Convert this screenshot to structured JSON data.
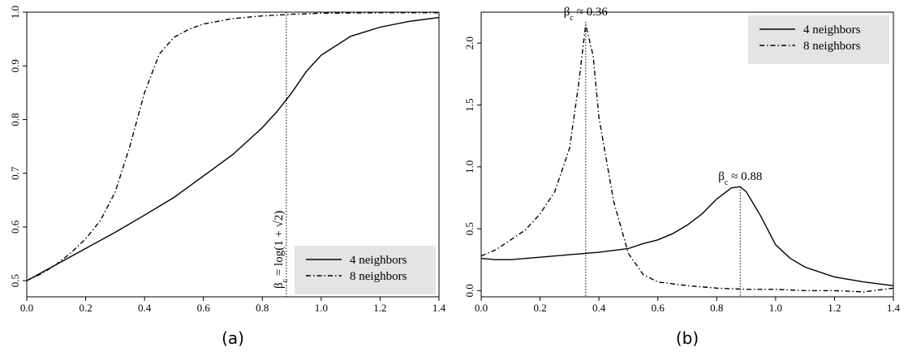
{
  "chart_data": [
    {
      "type": "line",
      "caption": "(a)",
      "xlim": [
        0,
        1.4
      ],
      "ylim": [
        0.47,
        1.0
      ],
      "xticks": [
        "0.0",
        "0.2",
        "0.4",
        "0.6",
        "0.8",
        "1.0",
        "1.2",
        "1.4"
      ],
      "yticks": [
        "0.5",
        "0.6",
        "0.7",
        "0.8",
        "0.9",
        "1.0"
      ],
      "legend": {
        "position": "bottom-right"
      },
      "annotation": {
        "text": "β",
        "sub": "c",
        "rest": " = log(1 + √2)",
        "x": 0.8814
      },
      "series": [
        {
          "name": "4 neighbors",
          "style": "solid",
          "x": [
            0.0,
            0.1,
            0.2,
            0.3,
            0.4,
            0.5,
            0.55,
            0.6,
            0.7,
            0.8,
            0.85,
            0.9,
            0.95,
            1.0,
            1.1,
            1.2,
            1.3,
            1.4
          ],
          "y": [
            0.5,
            0.53,
            0.56,
            0.59,
            0.622,
            0.655,
            0.675,
            0.695,
            0.735,
            0.785,
            0.815,
            0.85,
            0.89,
            0.92,
            0.955,
            0.972,
            0.983,
            0.99
          ]
        },
        {
          "name": "8 neighbors",
          "style": "dashdot",
          "x": [
            0.0,
            0.05,
            0.1,
            0.15,
            0.2,
            0.25,
            0.3,
            0.35,
            0.4,
            0.45,
            0.5,
            0.55,
            0.6,
            0.7,
            0.8,
            0.9,
            1.0,
            1.2,
            1.4
          ],
          "y": [
            0.5,
            0.513,
            0.53,
            0.552,
            0.578,
            0.612,
            0.665,
            0.75,
            0.85,
            0.922,
            0.953,
            0.968,
            0.978,
            0.988,
            0.993,
            0.996,
            0.998,
            0.999,
            0.999
          ]
        }
      ]
    },
    {
      "type": "line",
      "caption": "(b)",
      "xlim": [
        0,
        1.4
      ],
      "ylim": [
        -0.05,
        2.25
      ],
      "xticks": [
        "0.0",
        "0.2",
        "0.4",
        "0.6",
        "0.8",
        "1.0",
        "1.2",
        "1.4"
      ],
      "yticks": [
        "0.0",
        "0.5",
        "1.0",
        "1.5",
        "2.0"
      ],
      "legend": {
        "position": "top-right"
      },
      "annotations": [
        {
          "text": "β",
          "sub": "c",
          "rest": " ≈ 0.36",
          "x": 0.355,
          "y": 2.17
        },
        {
          "text": "β",
          "sub": "c",
          "rest": " ≈ 0.88",
          "x": 0.88,
          "y": 0.84
        }
      ],
      "series": [
        {
          "name": "4 neighbors",
          "style": "solid",
          "x": [
            0.0,
            0.05,
            0.1,
            0.15,
            0.2,
            0.3,
            0.4,
            0.5,
            0.55,
            0.6,
            0.65,
            0.7,
            0.75,
            0.8,
            0.85,
            0.88,
            0.9,
            0.95,
            1.0,
            1.05,
            1.1,
            1.2,
            1.3,
            1.4
          ],
          "y": [
            0.26,
            0.25,
            0.25,
            0.26,
            0.27,
            0.29,
            0.31,
            0.34,
            0.38,
            0.41,
            0.46,
            0.53,
            0.62,
            0.74,
            0.83,
            0.84,
            0.8,
            0.6,
            0.37,
            0.26,
            0.19,
            0.11,
            0.07,
            0.04
          ]
        },
        {
          "name": "8 neighbors",
          "style": "dashdot",
          "x": [
            0.0,
            0.05,
            0.1,
            0.15,
            0.2,
            0.25,
            0.3,
            0.33,
            0.355,
            0.38,
            0.4,
            0.45,
            0.5,
            0.55,
            0.6,
            0.7,
            0.8,
            0.9,
            1.0,
            1.1,
            1.2,
            1.3,
            1.4
          ],
          "y": [
            0.28,
            0.33,
            0.41,
            0.49,
            0.62,
            0.8,
            1.15,
            1.65,
            2.15,
            1.9,
            1.4,
            0.72,
            0.3,
            0.13,
            0.07,
            0.04,
            0.02,
            0.01,
            0.01,
            0.0,
            0.0,
            -0.01,
            0.02
          ]
        }
      ]
    }
  ]
}
